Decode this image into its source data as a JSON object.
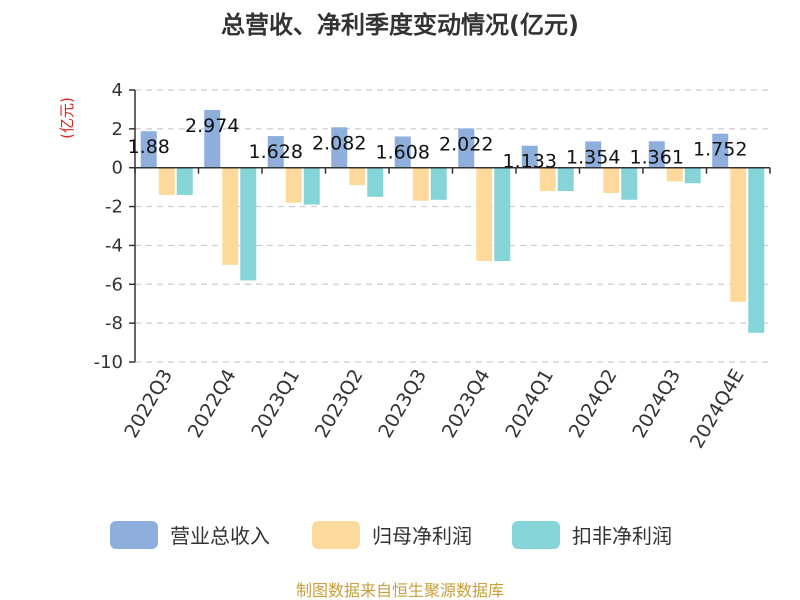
{
  "chart_data": {
    "type": "bar",
    "title": "总营收、净利季度变动情况(亿元)",
    "ylabel": "(亿元)",
    "ylim": [
      -10,
      4
    ],
    "yticks": [
      4,
      2,
      0,
      -2,
      -4,
      -6,
      -8,
      -10
    ],
    "grid": true,
    "legend_position": "bottom",
    "categories": [
      "2022Q3",
      "2022Q4",
      "2023Q1",
      "2023Q2",
      "2023Q3",
      "2023Q4",
      "2024Q1",
      "2024Q2",
      "2024Q3",
      "2024Q4E"
    ],
    "series": [
      {
        "name": "营业总收入",
        "color": "#8eaedc",
        "values": [
          1.88,
          2.974,
          1.628,
          2.082,
          1.608,
          2.022,
          1.133,
          1.354,
          1.361,
          1.752
        ],
        "labels": [
          "1.88",
          "2.974",
          "1.628",
          "2.082",
          "1.608",
          "2.022",
          "1.133",
          "1.354",
          "1.361",
          "1.752"
        ]
      },
      {
        "name": "归母净利润",
        "color": "#fdd99b",
        "values": [
          -1.4,
          -5.0,
          -1.8,
          -0.9,
          -1.7,
          -4.8,
          -1.2,
          -1.3,
          -0.7,
          -6.9
        ]
      },
      {
        "name": "扣非净利润",
        "color": "#85d5d8",
        "values": [
          -1.4,
          -5.8,
          -1.9,
          -1.5,
          -1.65,
          -4.8,
          -1.2,
          -1.65,
          -0.8,
          -8.5
        ]
      }
    ]
  },
  "source": {
    "text": "制图数据来自恒生聚源数据库",
    "color": "#c8a03c"
  }
}
